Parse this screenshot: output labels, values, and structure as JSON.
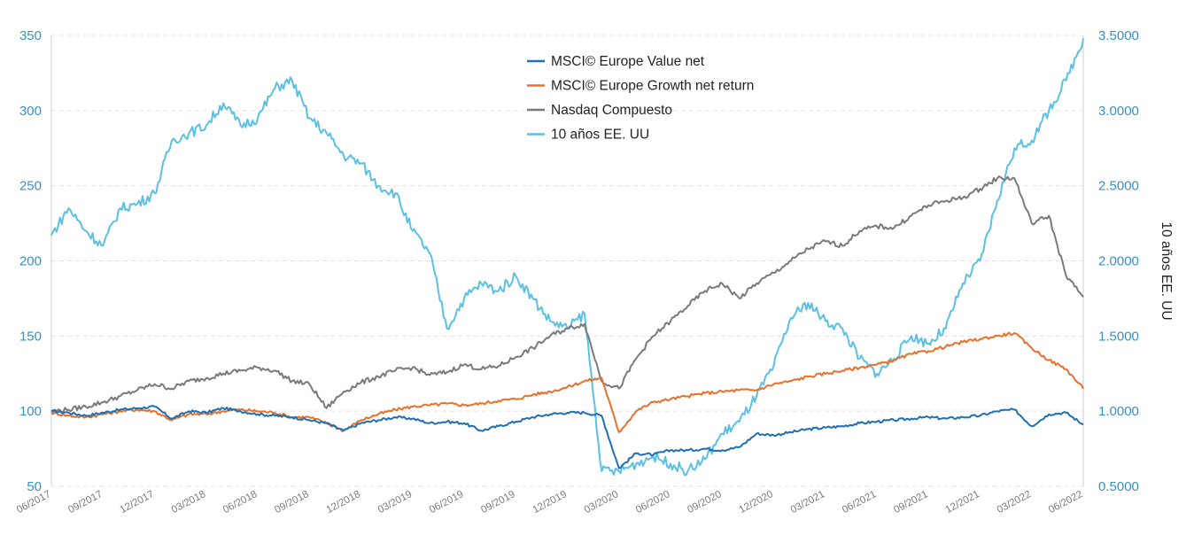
{
  "chart_data": {
    "type": "line",
    "title": "",
    "xlabel": "",
    "ylabel_left": "",
    "ylabel_right": "10 años EE. UU",
    "ylim_left": [
      50,
      350
    ],
    "ylim_right": [
      0.5,
      3.5
    ],
    "yticks_left": [
      "350",
      "300",
      "250",
      "200",
      "150",
      "100",
      "50"
    ],
    "yticks_right": [
      "3.5000",
      "3.0000",
      "2.5000",
      "2.0000",
      "1.5000",
      "1.0000",
      "0.5000"
    ],
    "xticks": [
      "06/2017",
      "09/2017",
      "12/2017",
      "03/2018",
      "06/2018",
      "09/2018",
      "12/2018",
      "03/2019",
      "06/2019",
      "09/2019",
      "12/2019",
      "03/2020",
      "06/2020",
      "09/2020",
      "12/2020",
      "03/2021",
      "06/2021",
      "09/2021",
      "12/2021",
      "03/2022",
      "06/2022"
    ],
    "grid": "horizontal dashed",
    "legend_position": "top-center",
    "colors": {
      "value": "#1f6fb5",
      "growth": "#e8702a",
      "nasdaq": "#7a7a7a",
      "treasury": "#5bc0e3",
      "left_axis_text": "#3a8fc4",
      "right_axis_text": "#3a8fc4",
      "grid": "#e3e3e3"
    },
    "series": [
      {
        "name": "MSCI© Europe Value net",
        "axis": "left",
        "color_key": "value",
        "x": [
          0,
          1,
          2,
          3,
          4,
          5,
          6,
          7,
          8,
          9,
          10,
          11,
          12,
          13,
          14,
          15,
          16,
          17,
          18,
          19,
          20,
          21,
          22,
          23,
          24,
          25,
          26,
          27,
          28,
          29,
          30,
          31,
          32,
          33,
          34,
          35,
          36,
          37,
          38,
          39,
          40,
          41,
          42,
          43,
          44,
          45,
          46,
          47,
          48,
          49,
          50,
          51,
          52,
          53,
          54,
          55,
          56,
          57,
          58,
          59,
          60
        ],
        "values": [
          100,
          99,
          97,
          99,
          101,
          102,
          103,
          95,
          100,
          99,
          102,
          100,
          98,
          97,
          96,
          94,
          92,
          87,
          92,
          94,
          96,
          95,
          92,
          93,
          92,
          87,
          90,
          93,
          96,
          98,
          99,
          99,
          97,
          62,
          72,
          71,
          74,
          74,
          75,
          74,
          76,
          85,
          84,
          86,
          88,
          89,
          90,
          92,
          93,
          94,
          95,
          96,
          95,
          96,
          97,
          100,
          101,
          90,
          98,
          99,
          91
        ]
      },
      {
        "name": "MSCI© Europe Growth net return",
        "axis": "left",
        "color_key": "growth",
        "x": [
          0,
          1,
          2,
          3,
          4,
          5,
          6,
          7,
          8,
          9,
          10,
          11,
          12,
          13,
          14,
          15,
          16,
          17,
          18,
          19,
          20,
          21,
          22,
          23,
          24,
          25,
          26,
          27,
          28,
          29,
          30,
          31,
          32,
          33,
          34,
          35,
          36,
          37,
          38,
          39,
          40,
          41,
          42,
          43,
          44,
          45,
          46,
          47,
          48,
          49,
          50,
          51,
          52,
          53,
          54,
          55,
          56,
          57,
          58,
          59,
          60
        ],
        "values": [
          99,
          97,
          96,
          98,
          100,
          101,
          100,
          94,
          98,
          98,
          100,
          101,
          100,
          99,
          96,
          96,
          92,
          87,
          94,
          98,
          101,
          103,
          104,
          105,
          104,
          105,
          107,
          108,
          111,
          113,
          116,
          120,
          122,
          86,
          100,
          106,
          108,
          110,
          112,
          113,
          114,
          114,
          118,
          120,
          123,
          125,
          127,
          129,
          131,
          134,
          138,
          140,
          143,
          146,
          148,
          150,
          152,
          142,
          134,
          128,
          115
        ]
      },
      {
        "name": "Nasdaq Compuesto",
        "axis": "left",
        "color_key": "nasdaq",
        "x": [
          0,
          1,
          2,
          3,
          4,
          5,
          6,
          7,
          8,
          9,
          10,
          11,
          12,
          13,
          14,
          15,
          16,
          17,
          18,
          19,
          20,
          21,
          22,
          23,
          24,
          25,
          26,
          27,
          28,
          29,
          30,
          31,
          32,
          33,
          34,
          35,
          36,
          37,
          38,
          39,
          40,
          41,
          42,
          43,
          44,
          45,
          46,
          47,
          48,
          49,
          50,
          51,
          52,
          53,
          54,
          55,
          56,
          57,
          58,
          59,
          60
        ],
        "values": [
          100,
          101,
          103,
          106,
          110,
          114,
          118,
          115,
          120,
          122,
          125,
          127,
          129,
          127,
          120,
          118,
          102,
          113,
          119,
          123,
          127,
          129,
          124,
          126,
          131,
          128,
          130,
          136,
          142,
          150,
          155,
          158,
          120,
          115,
          135,
          150,
          160,
          170,
          180,
          185,
          175,
          185,
          192,
          200,
          208,
          213,
          210,
          220,
          223,
          222,
          230,
          237,
          240,
          242,
          248,
          255,
          255,
          225,
          230,
          190,
          176
        ]
      },
      {
        "name": "10 años EE. UU",
        "axis": "right",
        "color_key": "treasury",
        "x": [
          0,
          1,
          2,
          3,
          4,
          5,
          6,
          7,
          8,
          9,
          10,
          11,
          12,
          13,
          14,
          15,
          16,
          17,
          18,
          19,
          20,
          21,
          22,
          23,
          24,
          25,
          26,
          27,
          28,
          29,
          30,
          31,
          32,
          33,
          34,
          35,
          36,
          37,
          38,
          39,
          40,
          41,
          42,
          43,
          44,
          45,
          46,
          47,
          48,
          49,
          50,
          51,
          52,
          53,
          54,
          55,
          56,
          57,
          58,
          59,
          60
        ],
        "values": [
          2.17,
          2.35,
          2.2,
          2.1,
          2.35,
          2.38,
          2.45,
          2.8,
          2.85,
          2.9,
          3.05,
          2.9,
          2.95,
          3.15,
          3.2,
          2.95,
          2.85,
          2.7,
          2.65,
          2.5,
          2.45,
          2.2,
          2.05,
          1.55,
          1.75,
          1.85,
          1.8,
          1.9,
          1.75,
          1.6,
          1.55,
          1.65,
          0.6,
          0.6,
          0.65,
          0.7,
          0.65,
          0.6,
          0.68,
          0.85,
          0.93,
          1.1,
          1.3,
          1.62,
          1.72,
          1.6,
          1.55,
          1.35,
          1.25,
          1.35,
          1.5,
          1.45,
          1.55,
          1.85,
          2.0,
          2.4,
          2.75,
          2.8,
          3.0,
          3.2,
          3.48
        ]
      }
    ]
  }
}
